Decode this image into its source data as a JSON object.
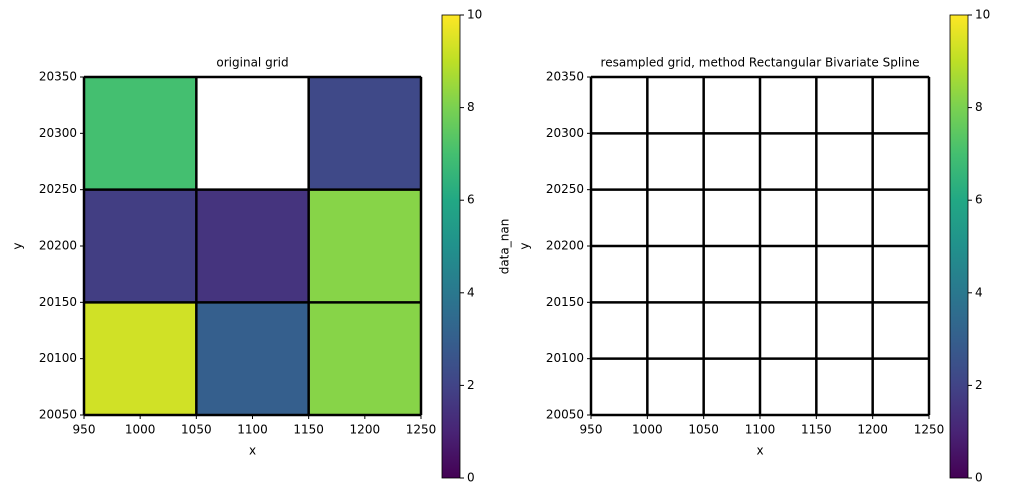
{
  "chart_data": [
    {
      "type": "heatmap",
      "title": "original grid",
      "xlabel": "x",
      "ylabel": "y",
      "xedges": [
        950,
        1050,
        1150,
        1250
      ],
      "yedges": [
        20050,
        20150,
        20250,
        20350
      ],
      "values": [
        [
          9.3,
          3.0,
          8.2
        ],
        [
          1.8,
          1.5,
          8.2
        ],
        [
          7.0,
          null,
          2.2
        ]
      ],
      "xlim": [
        950,
        1250
      ],
      "ylim": [
        20050,
        20350
      ],
      "xticks": [
        950,
        1000,
        1050,
        1100,
        1150,
        1200,
        1250
      ],
      "yticks": [
        20050,
        20100,
        20150,
        20200,
        20250,
        20300,
        20350
      ],
      "colorscale": [
        "#440154",
        "#482475",
        "#414487",
        "#355f8d",
        "#2a788e",
        "#21918c",
        "#22a884",
        "#44bf70",
        "#7ad151",
        "#bddf26",
        "#fde725"
      ],
      "colorbar": {
        "label": "data_nan",
        "lim": [
          0,
          10
        ],
        "ticks": [
          0,
          2,
          4,
          6,
          8,
          10
        ]
      }
    },
    {
      "type": "heatmap",
      "title": "resampled grid, method Rectangular Bivariate Spline",
      "xlabel": "x",
      "ylabel": "y",
      "xedges": [
        950,
        1000,
        1050,
        1100,
        1150,
        1200,
        1250
      ],
      "yedges": [
        20050,
        20100,
        20150,
        20200,
        20250,
        20300,
        20350
      ],
      "values": [
        [
          null,
          null,
          null,
          null,
          null,
          null
        ],
        [
          null,
          null,
          null,
          null,
          null,
          null
        ],
        [
          null,
          null,
          null,
          null,
          null,
          null
        ],
        [
          null,
          null,
          null,
          null,
          null,
          null
        ],
        [
          null,
          null,
          null,
          null,
          null,
          null
        ],
        [
          null,
          null,
          null,
          null,
          null,
          null
        ]
      ],
      "xlim": [
        950,
        1250
      ],
      "ylim": [
        20050,
        20350
      ],
      "xticks": [
        950,
        1000,
        1050,
        1100,
        1150,
        1200,
        1250
      ],
      "yticks": [
        20050,
        20100,
        20150,
        20200,
        20250,
        20300,
        20350
      ],
      "colorscale": [
        "#440154",
        "#482475",
        "#414487",
        "#355f8d",
        "#2a788e",
        "#21918c",
        "#22a884",
        "#44bf70",
        "#7ad151",
        "#bddf26",
        "#fde725"
      ],
      "colorbar": {
        "lim": [
          0,
          10
        ],
        "ticks": [
          0,
          2,
          4,
          6,
          8,
          10
        ]
      }
    }
  ]
}
